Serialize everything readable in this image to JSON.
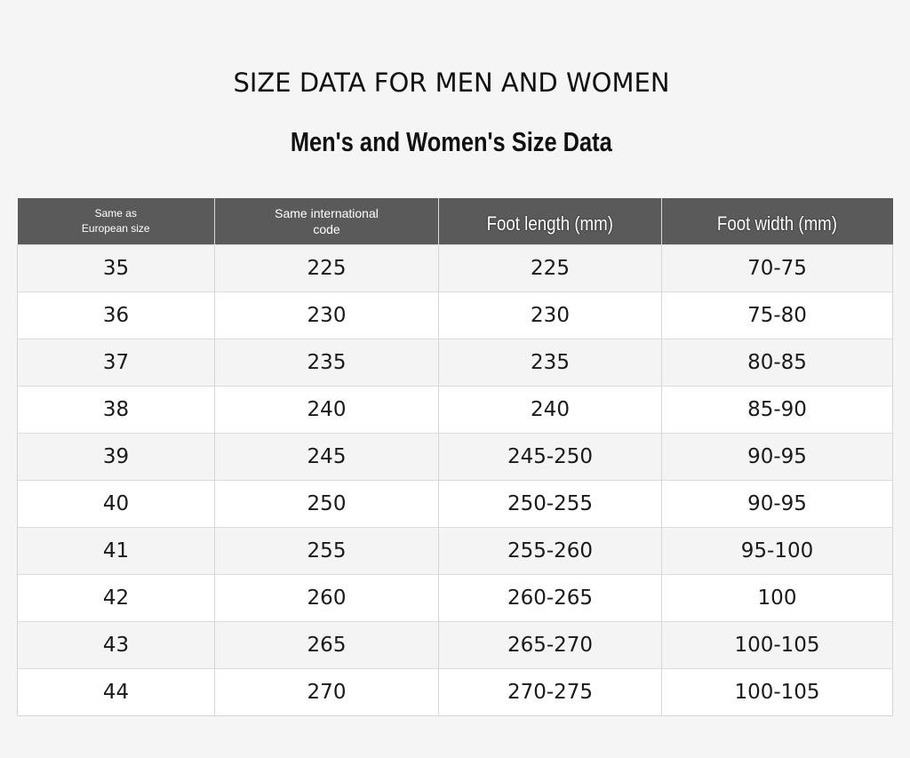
{
  "title": "SIZE DATA FOR MEN AND WOMEN",
  "subtitle": "Men's and Women's Size Data",
  "table": {
    "headers": [
      "Same as European size",
      "Same international code",
      "Foot length (mm)",
      "Foot width (mm)"
    ],
    "rows": [
      [
        "35",
        "225",
        "225",
        "70-75"
      ],
      [
        "36",
        "230",
        "230",
        "75-80"
      ],
      [
        "37",
        "235",
        "235",
        "80-85"
      ],
      [
        "38",
        "240",
        "240",
        "85-90"
      ],
      [
        "39",
        "245",
        "245-250",
        "90-95"
      ],
      [
        "40",
        "250",
        "250-255",
        "90-95"
      ],
      [
        "41",
        "255",
        "255-260",
        "95-100"
      ],
      [
        "42",
        "260",
        "260-265",
        "100"
      ],
      [
        "43",
        "265",
        "265-270",
        "100-105"
      ],
      [
        "44",
        "270",
        "270-275",
        "100-105"
      ]
    ]
  },
  "colors": {
    "header_background": "#5a5a5a",
    "header_text": "#ffffff",
    "row_shaded": "#f4f4f4",
    "row_plain": "#ffffff",
    "page_background": "#f5f5f5"
  }
}
